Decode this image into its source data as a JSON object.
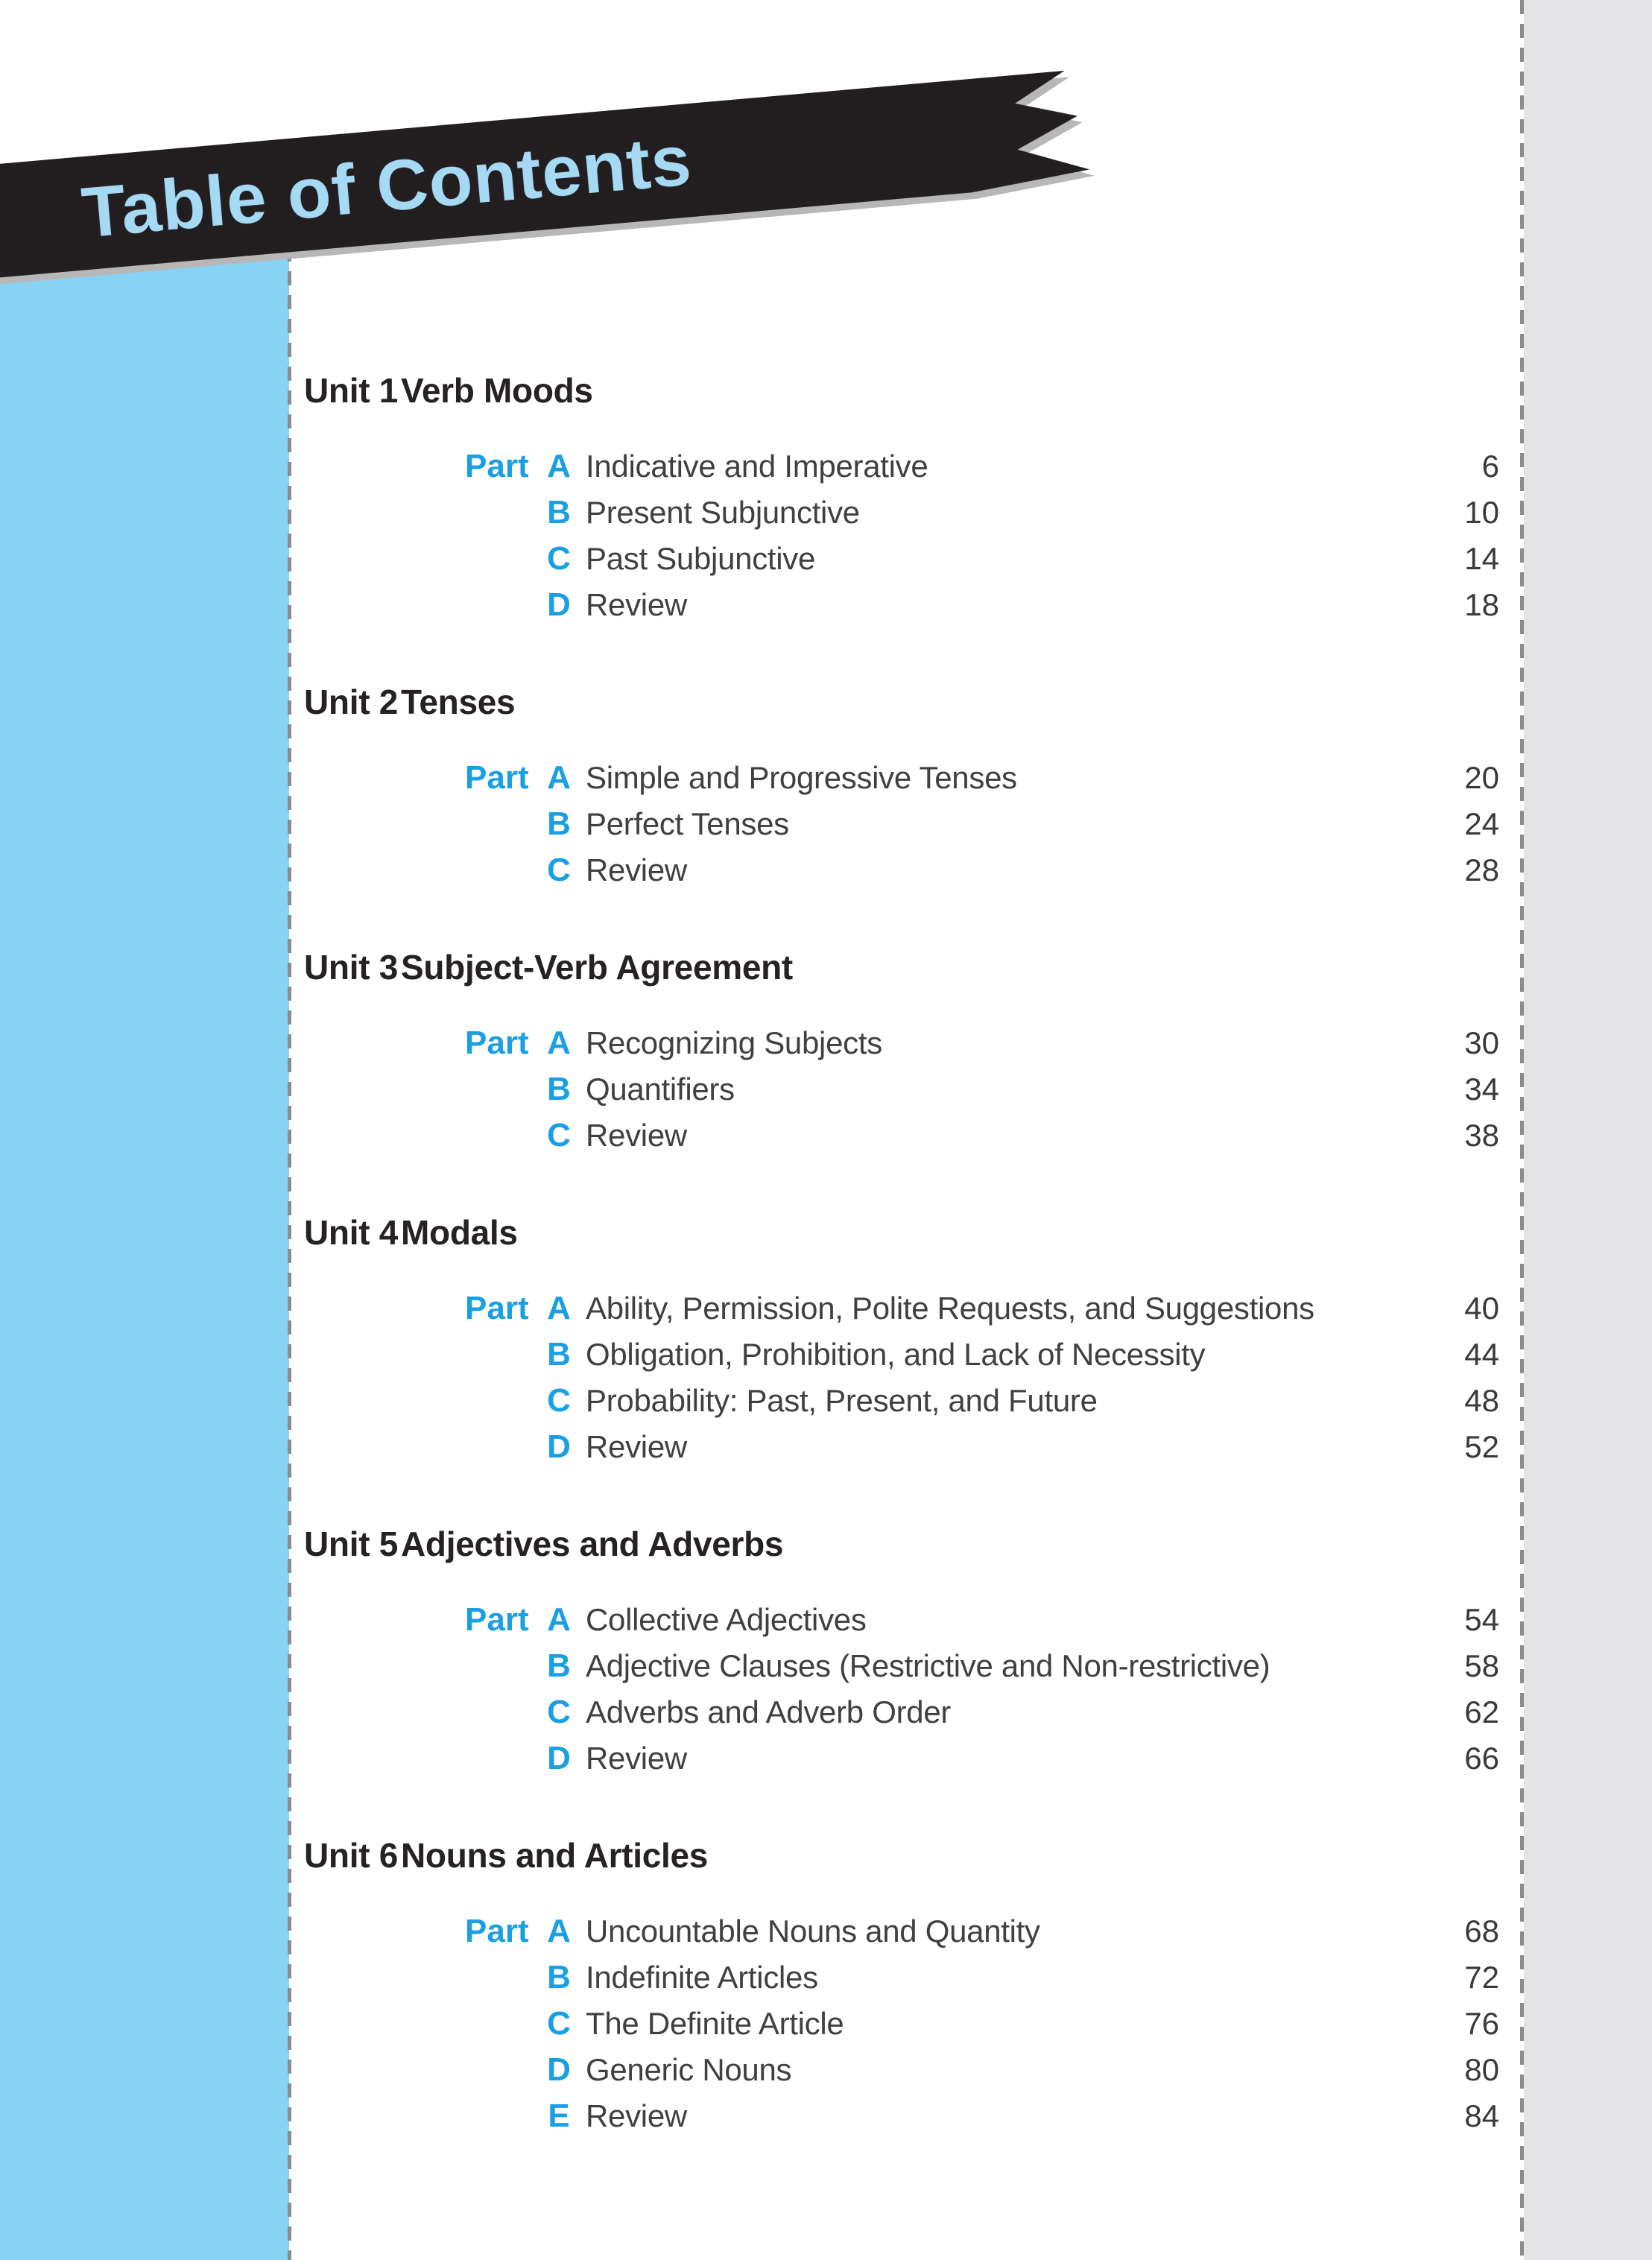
{
  "banner": {
    "title": "Table of Contents"
  },
  "accents": {
    "ribbon_bg": "#221E1F",
    "ribbon_text": "#A5D9F4",
    "sidebar_blue": "#87D3F3",
    "part_blue": "#1AA0E2",
    "heading_black": "#262223",
    "body_text": "#404041",
    "gray_panel": "#E4E4E6",
    "dash_gray": "#8C8C8C"
  },
  "toc": {
    "part_label": "Part",
    "units": [
      {
        "number": "Unit 1",
        "title": "Verb Moods",
        "parts": [
          {
            "letter": "A",
            "title": "Indicative and Imperative",
            "page": "6"
          },
          {
            "letter": "B",
            "title": "Present Subjunctive",
            "page": "10"
          },
          {
            "letter": "C",
            "title": "Past Subjunctive",
            "page": "14"
          },
          {
            "letter": "D",
            "title": "Review",
            "page": "18"
          }
        ]
      },
      {
        "number": "Unit 2",
        "title": "Tenses",
        "parts": [
          {
            "letter": "A",
            "title": "Simple and Progressive Tenses",
            "page": "20"
          },
          {
            "letter": "B",
            "title": "Perfect Tenses",
            "page": "24"
          },
          {
            "letter": "C",
            "title": "Review",
            "page": "28"
          }
        ]
      },
      {
        "number": "Unit 3",
        "title": "Subject-Verb Agreement",
        "parts": [
          {
            "letter": "A",
            "title": "Recognizing Subjects",
            "page": "30"
          },
          {
            "letter": "B",
            "title": "Quantifiers",
            "page": "34"
          },
          {
            "letter": "C",
            "title": "Review",
            "page": "38"
          }
        ]
      },
      {
        "number": "Unit 4",
        "title": "Modals",
        "parts": [
          {
            "letter": "A",
            "title": "Ability, Permission, Polite Requests, and Suggestions",
            "page": "40"
          },
          {
            "letter": "B",
            "title": "Obligation, Prohibition, and Lack of Necessity",
            "page": "44"
          },
          {
            "letter": "C",
            "title": "Probability: Past, Present, and Future",
            "page": "48"
          },
          {
            "letter": "D",
            "title": "Review",
            "page": "52"
          }
        ]
      },
      {
        "number": "Unit 5",
        "title": "Adjectives and Adverbs",
        "parts": [
          {
            "letter": "A",
            "title": "Collective Adjectives",
            "page": "54"
          },
          {
            "letter": "B",
            "title": "Adjective Clauses (Restrictive and Non-restrictive)",
            "page": "58"
          },
          {
            "letter": "C",
            "title": "Adverbs and Adverb Order",
            "page": "62"
          },
          {
            "letter": "D",
            "title": "Review",
            "page": "66"
          }
        ]
      },
      {
        "number": "Unit 6",
        "title": "Nouns and Articles",
        "parts": [
          {
            "letter": "A",
            "title": "Uncountable Nouns and Quantity",
            "page": "68"
          },
          {
            "letter": "B",
            "title": "Indefinite Articles",
            "page": "72"
          },
          {
            "letter": "C",
            "title": "The Definite Article",
            "page": "76"
          },
          {
            "letter": "D",
            "title": "Generic Nouns",
            "page": "80"
          },
          {
            "letter": "E",
            "title": "Review",
            "page": "84"
          }
        ]
      }
    ]
  }
}
